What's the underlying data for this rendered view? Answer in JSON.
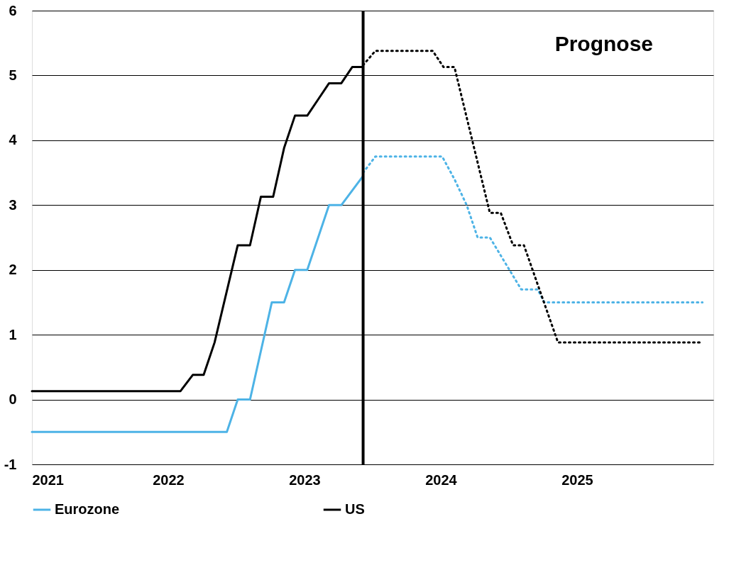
{
  "chart_data": {
    "type": "line",
    "xlim": [
      2021,
      2026
    ],
    "xticks": [
      2021,
      2022,
      2023,
      2024,
      2025
    ],
    "ylim": [
      -1,
      6
    ],
    "yticks": [
      -1,
      0,
      1,
      2,
      3,
      4,
      5,
      6
    ],
    "grid": "y",
    "legend": "bottom",
    "marker": "none",
    "annotations": [
      "Prognose"
    ],
    "ref_lines": [
      {
        "axis": "x",
        "value": 2023.43,
        "color": "#000000",
        "line_style": "solid"
      }
    ],
    "series": [
      {
        "name": "Eurozone",
        "color": "#4db3e6",
        "line_style": "solid",
        "x": [
          2021.0,
          2022.43,
          2022.51,
          2022.6,
          2022.76,
          2022.85,
          2022.93,
          2023.02,
          2023.18,
          2023.27,
          2023.43
        ],
        "values": [
          -0.5,
          -0.5,
          0,
          0,
          1.5,
          1.5,
          2.0,
          2.0,
          3.0,
          3.0,
          3.45
        ]
      },
      {
        "name": "US",
        "color": "#000000",
        "line_style": "solid",
        "x": [
          2021.0,
          2022.09,
          2022.18,
          2022.26,
          2022.34,
          2022.51,
          2022.6,
          2022.68,
          2022.77,
          2022.85,
          2022.93,
          2023.02,
          2023.1,
          2023.18,
          2023.27,
          2023.35,
          2023.43
        ],
        "values": [
          0.13,
          0.13,
          0.38,
          0.38,
          0.88,
          2.38,
          2.38,
          3.13,
          3.13,
          3.88,
          4.38,
          4.38,
          4.63,
          4.88,
          4.88,
          5.13,
          5.13
        ]
      },
      {
        "color": "#4db3e6",
        "line_style": "dotted",
        "x": [
          2023.43,
          2023.52,
          2024.01,
          2024.1,
          2024.19,
          2024.27,
          2024.36,
          2024.59,
          2024.71,
          2024.76,
          2025.92
        ],
        "values": [
          3.5,
          3.75,
          3.75,
          3.4,
          3.0,
          2.5,
          2.5,
          1.7,
          1.7,
          1.5,
          1.5
        ]
      },
      {
        "color": "#000000",
        "line_style": "dotted",
        "x": [
          2023.43,
          2023.52,
          2023.94,
          2024.02,
          2024.1,
          2024.36,
          2024.44,
          2024.53,
          2024.61,
          2024.86,
          2025.92
        ],
        "values": [
          5.16,
          5.38,
          5.38,
          5.13,
          5.13,
          2.88,
          2.88,
          2.38,
          2.38,
          0.88,
          0.88
        ]
      }
    ]
  }
}
